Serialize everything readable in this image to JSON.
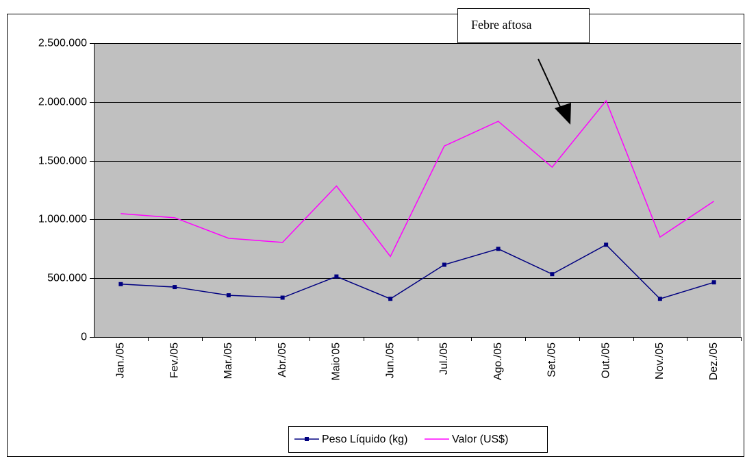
{
  "chart_data": {
    "type": "line",
    "categories": [
      "Jan./05",
      "Fev./05",
      "Mar./05",
      "Abr./05",
      "Maio'05",
      "Jun./05",
      "Jul./05",
      "Ago./05",
      "Set./05",
      "Out./05",
      "Nov./05",
      "Dez./05"
    ],
    "series": [
      {
        "name": "Peso Líquido (kg)",
        "color": "#000080",
        "marker": "square",
        "values": [
          450000,
          425000,
          355000,
          335000,
          515000,
          325000,
          615000,
          750000,
          535000,
          785000,
          325000,
          465000
        ]
      },
      {
        "name": "Valor (US$)",
        "color": "#ff00ff",
        "values": [
          1050000,
          1015000,
          840000,
          805000,
          1285000,
          685000,
          1625000,
          1835000,
          1445000,
          2010000,
          850000,
          1155000
        ]
      }
    ],
    "ylim": [
      0,
      2500000
    ],
    "yticks": [
      0,
      {
        "value": 500000,
        "label": "500.000"
      },
      {
        "value": 1000000,
        "label": "1.000.000"
      },
      {
        "value": 1500000,
        "label": "1.500.000"
      },
      {
        "value": 2000000,
        "label": "2.000.000"
      },
      {
        "value": 2500000,
        "label": "2.500.000"
      }
    ],
    "grid": true,
    "plot_background": "#c0c0c0",
    "legend": "bottom",
    "annotations": [
      "Febre aftosa"
    ]
  }
}
